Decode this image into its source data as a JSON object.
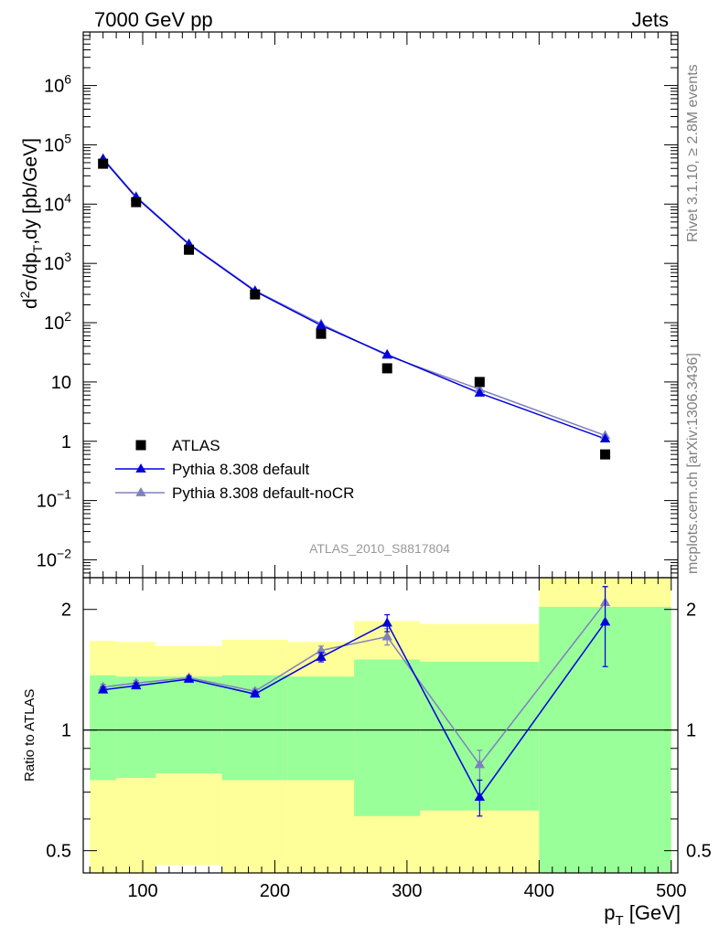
{
  "header": {
    "left": "7000 GeV pp",
    "right": "Jets"
  },
  "side_text": {
    "rivet": "Rivet 3.1.10, ≥ 2.8M events",
    "mcplots": "mcplots.cern.ch [arXiv:1306.3436]"
  },
  "analysis_id": "ATLAS_2010_S8817804",
  "colors": {
    "data": "#000000",
    "default": "#0000dd",
    "noCR": "#8080c0",
    "band_inner": "#99ff99",
    "band_outer": "#ffff99"
  },
  "chart_data": [
    {
      "type": "scatter",
      "panel": "main",
      "ylabel_parts": {
        "d": "d",
        "sup2": "2",
        "body1": "σ/dp",
        "subT": "T",
        "body2": ",dy [pb/GeV]"
      },
      "yscale": "log",
      "ylim": [
        0.005,
        8000000
      ],
      "xlim": [
        55,
        505
      ],
      "y_ticks": [
        {
          "value": 0.01,
          "base": "10",
          "exp": "−2"
        },
        {
          "value": 0.1,
          "base": "10",
          "exp": "−1"
        },
        {
          "value": 1,
          "base": "1",
          "exp": ""
        },
        {
          "value": 10,
          "base": "10",
          "exp": ""
        },
        {
          "value": 100,
          "base": "10",
          "exp": "2"
        },
        {
          "value": 1000,
          "base": "10",
          "exp": "3"
        },
        {
          "value": 10000,
          "base": "10",
          "exp": "4"
        },
        {
          "value": 100000,
          "base": "10",
          "exp": "5"
        },
        {
          "value": 1000000,
          "base": "10",
          "exp": "6"
        }
      ],
      "legend_position": "bottom-left",
      "series": [
        {
          "name": "ATLAS",
          "marker": "square",
          "x": [
            70,
            95,
            135,
            185,
            235,
            285,
            355,
            450
          ],
          "y": [
            48000,
            10800,
            1700,
            300,
            65,
            17,
            10,
            0.6
          ]
        },
        {
          "name": "Pythia 8.308 default",
          "marker": "triangle",
          "x": [
            70,
            95,
            135,
            185,
            235,
            285,
            355,
            450
          ],
          "y": [
            57000,
            13000,
            2100,
            340,
            90,
            29,
            6.5,
            1.1
          ]
        },
        {
          "name": "Pythia 8.308 default-noCR",
          "marker": "triangle",
          "x": [
            70,
            95,
            135,
            185,
            235,
            285,
            355,
            450
          ],
          "y": [
            59000,
            13400,
            2150,
            350,
            95,
            28,
            7.5,
            1.25
          ]
        }
      ]
    },
    {
      "type": "line",
      "panel": "ratio",
      "ylabel": "Ratio to ATLAS",
      "xlabel_parts": {
        "p": "p",
        "subT": "T",
        "rest": " [GeV]"
      },
      "yscale": "log",
      "ylim": [
        0.44,
        2.4
      ],
      "xlim": [
        55,
        505
      ],
      "x_ticks": [
        100,
        200,
        300,
        400,
        500
      ],
      "y_ticks": [
        0.5,
        1,
        2
      ],
      "reference_line": 1,
      "bands": [
        {
          "x0": 60,
          "x1": 80,
          "inner": [
            0.75,
            1.37
          ],
          "outer": [
            0.36,
            1.67
          ]
        },
        {
          "x0": 80,
          "x1": 110,
          "inner": [
            0.76,
            1.36
          ],
          "outer": [
            0.38,
            1.66
          ]
        },
        {
          "x0": 110,
          "x1": 160,
          "inner": [
            0.78,
            1.36
          ],
          "outer": [
            0.46,
            1.62
          ]
        },
        {
          "x0": 160,
          "x1": 210,
          "inner": [
            0.75,
            1.37
          ],
          "outer": [
            0.35,
            1.68
          ]
        },
        {
          "x0": 210,
          "x1": 260,
          "inner": [
            0.75,
            1.36
          ],
          "outer": [
            0.35,
            1.66
          ]
        },
        {
          "x0": 260,
          "x1": 310,
          "inner": [
            0.61,
            1.5
          ],
          "outer": [
            0.35,
            1.87
          ]
        },
        {
          "x0": 310,
          "x1": 400,
          "inner": [
            0.63,
            1.48
          ],
          "outer": [
            0.35,
            1.84
          ]
        },
        {
          "x0": 400,
          "x1": 500,
          "inner": [
            0.35,
            2.03
          ],
          "outer": [
            0.35,
            2.4
          ]
        }
      ],
      "series": [
        {
          "name": "Pythia 8.308 default",
          "x": [
            70,
            95,
            135,
            185,
            235,
            285,
            355,
            450
          ],
          "y": [
            1.26,
            1.29,
            1.34,
            1.23,
            1.52,
            1.85,
            0.68,
            1.86
          ],
          "err": [
            0.02,
            0.02,
            0.02,
            0.02,
            0.04,
            0.09,
            0.07,
            0.42
          ]
        },
        {
          "name": "Pythia 8.308 default-noCR",
          "x": [
            70,
            95,
            135,
            185,
            235,
            285,
            355,
            450
          ],
          "y": [
            1.28,
            1.31,
            1.35,
            1.25,
            1.58,
            1.71,
            0.82,
            2.08
          ],
          "err": [
            0.02,
            0.02,
            0.02,
            0.02,
            0.04,
            0.08,
            0.07,
            0.2
          ]
        }
      ]
    }
  ]
}
